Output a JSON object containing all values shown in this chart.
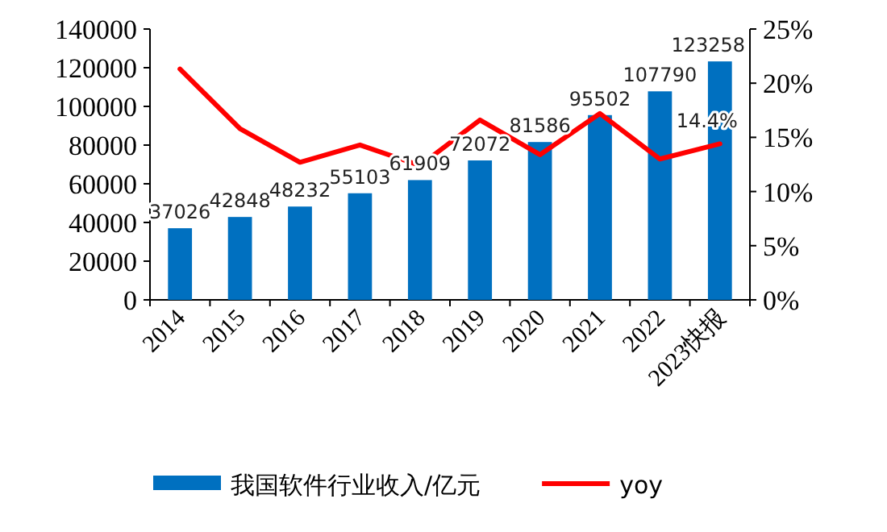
{
  "chart_data": {
    "type": "bar",
    "categories": [
      "2014",
      "2015",
      "2016",
      "2017",
      "2018",
      "2019",
      "2020",
      "2021",
      "2022",
      "2023快报"
    ],
    "series": [
      {
        "name": "我国软件行业收入/亿元",
        "type": "bar",
        "color": "#0070c0",
        "values": [
          37026,
          42848,
          48232,
          55103,
          61909,
          72072,
          81586,
          95502,
          107790,
          123258
        ],
        "value_labels": [
          "37026",
          "42848",
          "48232",
          "55103",
          "61909",
          "72072",
          "81586",
          "95502",
          "107790",
          "123258"
        ]
      },
      {
        "name": "yoy",
        "type": "line",
        "axis": "y2",
        "color": "#ff0000",
        "values": [
          21.3,
          15.8,
          12.7,
          14.3,
          12.4,
          16.6,
          13.4,
          17.2,
          13.0,
          14.4
        ],
        "value_labels": [
          null,
          null,
          null,
          null,
          null,
          null,
          null,
          null,
          null,
          "14.4%"
        ]
      }
    ],
    "ylim": [
      0,
      140000
    ],
    "yticks": [
      0,
      20000,
      40000,
      60000,
      80000,
      100000,
      120000,
      140000
    ],
    "y2lim": [
      0,
      25
    ],
    "y2ticks": [
      {
        "value": 0,
        "label": "0%"
      },
      {
        "value": 5,
        "label": "5%"
      },
      {
        "value": 10,
        "label": "10%"
      },
      {
        "value": 15,
        "label": "15%"
      },
      {
        "value": 20,
        "label": "20%"
      },
      {
        "value": 25,
        "label": "25%"
      }
    ],
    "legend": "bottom"
  }
}
